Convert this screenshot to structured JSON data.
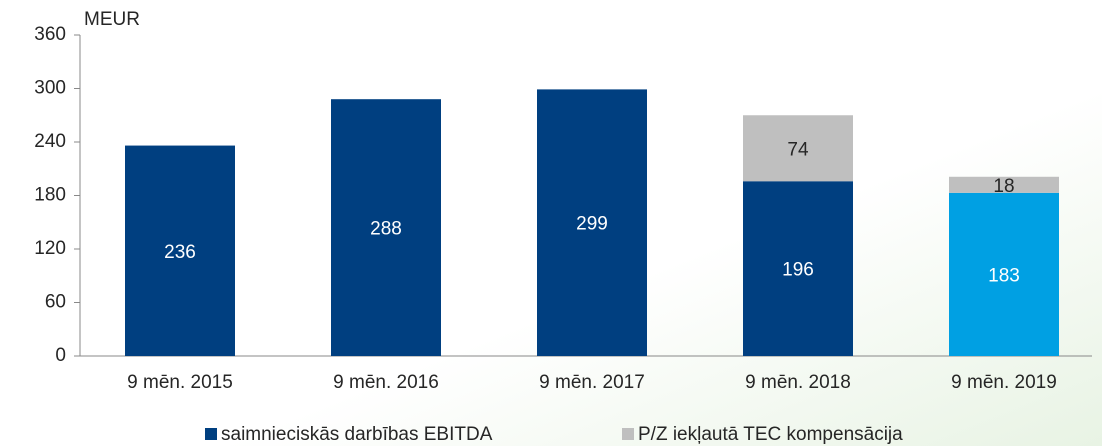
{
  "chart_data": {
    "type": "stacked_bar",
    "y_label": "MEUR",
    "categories": [
      "9 mēn. 2015",
      "9 mēn. 2016",
      "9 mēn. 2017",
      "9 mēn. 2018",
      "9 mēn. 2019"
    ],
    "series": [
      {
        "name": "saimnieciskās darbības EBITDA",
        "color": "#003f80",
        "colors": [
          "#003f80",
          "#003f80",
          "#003f80",
          "#003f80",
          "#00a0e3"
        ],
        "label_color": "#ffffff",
        "values": [
          236,
          288,
          299,
          196,
          183
        ]
      },
      {
        "name": "P/Z iekļautā TEC kompensācija",
        "color": "#bfbfbf",
        "label_color": "#262626",
        "values": [
          null,
          null,
          null,
          74,
          18
        ]
      }
    ],
    "ylim": [
      0,
      360
    ],
    "yticks": [
      0,
      60,
      120,
      180,
      240,
      300,
      360
    ],
    "grid": false,
    "legend": "bottom"
  }
}
